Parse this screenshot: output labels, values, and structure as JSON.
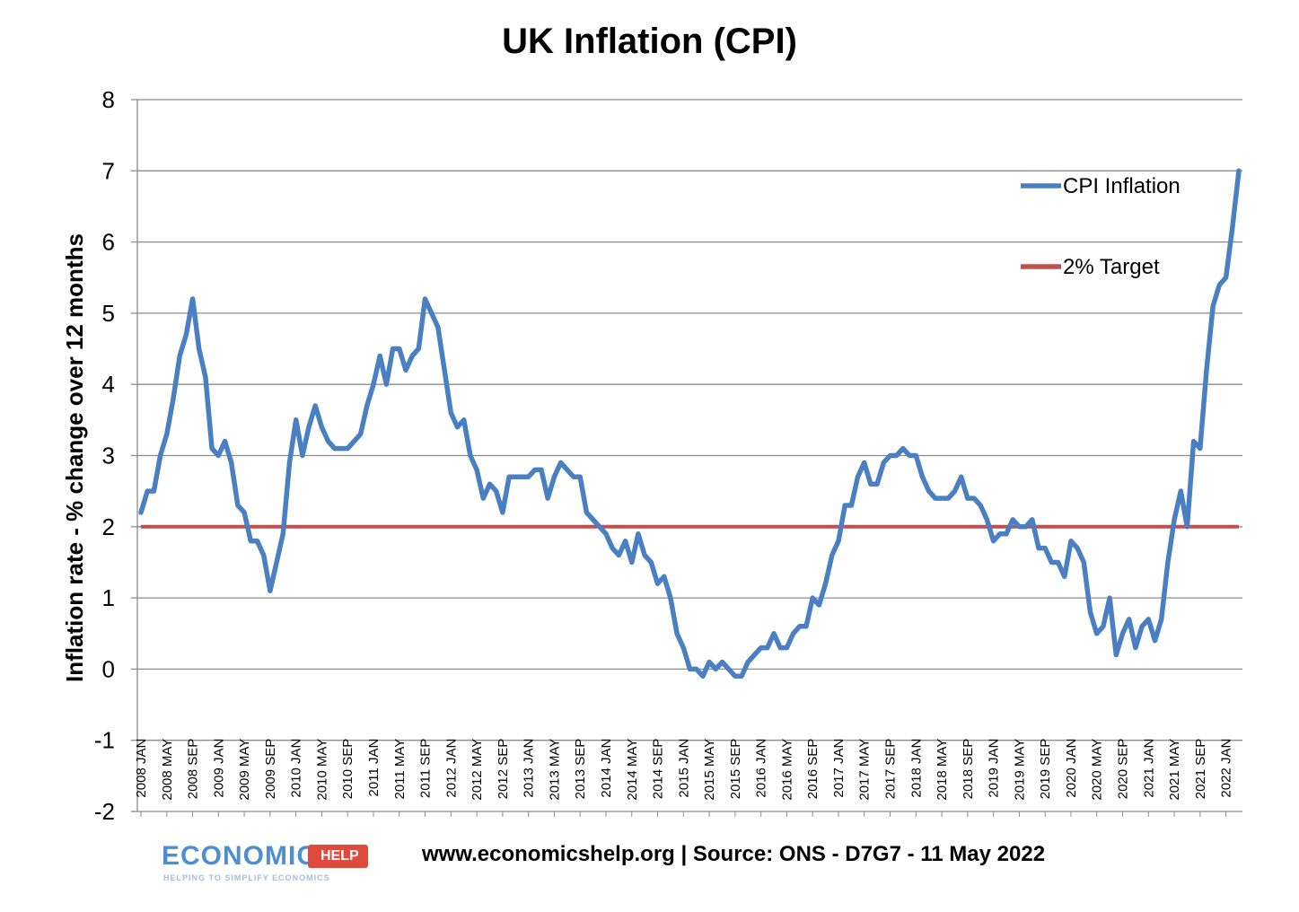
{
  "chart_data": {
    "type": "line",
    "title": "UK Inflation (CPI)",
    "ylabel": "Inflation rate  - % change over 12 months",
    "xlabel": "",
    "ylim": [
      -2,
      8
    ],
    "yticks": [
      -2,
      -1,
      0,
      1,
      2,
      3,
      4,
      5,
      6,
      7,
      8
    ],
    "grid": "horizontal",
    "legend_position": "top-right",
    "x_tick_labels": [
      "2008 JAN",
      "2008 MAY",
      "2008 SEP",
      "2009 JAN",
      "2009 MAY",
      "2009 SEP",
      "2010 JAN",
      "2010 MAY",
      "2010 SEP",
      "2011 JAN",
      "2011 MAY",
      "2011 SEP",
      "2012 JAN",
      "2012 MAY",
      "2012 SEP",
      "2013 JAN",
      "2013 MAY",
      "2013 SEP",
      "2014 JAN",
      "2014 MAY",
      "2014 SEP",
      "2015 JAN",
      "2015 MAY",
      "2015 SEP",
      "2016 JAN",
      "2016 MAY",
      "2016 SEP",
      "2017 JAN",
      "2017 MAY",
      "2017 SEP",
      "2018 JAN",
      "2018 MAY",
      "2018 SEP",
      "2019 JAN",
      "2019 MAY",
      "2019 SEP",
      "2020 JAN",
      "2020 MAY",
      "2020 SEP",
      "2021 JAN",
      "2021 MAY",
      "2021 SEP",
      "2022 JAN"
    ],
    "series": [
      {
        "name": "CPI Inflation",
        "color": "#4a7fc1",
        "start": "2008 JAN",
        "values": [
          2.2,
          2.5,
          2.5,
          3.0,
          3.3,
          3.8,
          4.4,
          4.7,
          5.2,
          4.5,
          4.1,
          3.1,
          3.0,
          3.2,
          2.9,
          2.3,
          2.2,
          1.8,
          1.8,
          1.6,
          1.1,
          1.5,
          1.9,
          2.9,
          3.5,
          3.0,
          3.4,
          3.7,
          3.4,
          3.2,
          3.1,
          3.1,
          3.1,
          3.2,
          3.3,
          3.7,
          4.0,
          4.4,
          4.0,
          4.5,
          4.5,
          4.2,
          4.4,
          4.5,
          5.2,
          5.0,
          4.8,
          4.2,
          3.6,
          3.4,
          3.5,
          3.0,
          2.8,
          2.4,
          2.6,
          2.5,
          2.2,
          2.7,
          2.7,
          2.7,
          2.7,
          2.8,
          2.8,
          2.4,
          2.7,
          2.9,
          2.8,
          2.7,
          2.7,
          2.2,
          2.1,
          2.0,
          1.9,
          1.7,
          1.6,
          1.8,
          1.5,
          1.9,
          1.6,
          1.5,
          1.2,
          1.3,
          1.0,
          0.5,
          0.3,
          0.0,
          0.0,
          -0.1,
          0.1,
          0.0,
          0.1,
          0.0,
          -0.1,
          -0.1,
          0.1,
          0.2,
          0.3,
          0.3,
          0.5,
          0.3,
          0.3,
          0.5,
          0.6,
          0.6,
          1.0,
          0.9,
          1.2,
          1.6,
          1.8,
          2.3,
          2.3,
          2.7,
          2.9,
          2.6,
          2.6,
          2.9,
          3.0,
          3.0,
          3.1,
          3.0,
          3.0,
          2.7,
          2.5,
          2.4,
          2.4,
          2.4,
          2.5,
          2.7,
          2.4,
          2.4,
          2.3,
          2.1,
          1.8,
          1.9,
          1.9,
          2.1,
          2.0,
          2.0,
          2.1,
          1.7,
          1.7,
          1.5,
          1.5,
          1.3,
          1.8,
          1.7,
          1.5,
          0.8,
          0.5,
          0.6,
          1.0,
          0.2,
          0.5,
          0.7,
          0.3,
          0.6,
          0.7,
          0.4,
          0.7,
          1.5,
          2.1,
          2.5,
          2.0,
          3.2,
          3.1,
          4.2,
          5.1,
          5.4,
          5.5,
          6.2,
          7.0
        ]
      },
      {
        "name": "2% Target",
        "color": "#c0504d",
        "constant": 2
      }
    ]
  },
  "footer": {
    "source": "www.economicshelp.org | Source: ONS - D7G7 - 11 May 2022"
  },
  "logo": {
    "word": "ECONOMICS",
    "badge": "HELP",
    "tagline": "HELPING TO SIMPLIFY ECONOMICS"
  }
}
